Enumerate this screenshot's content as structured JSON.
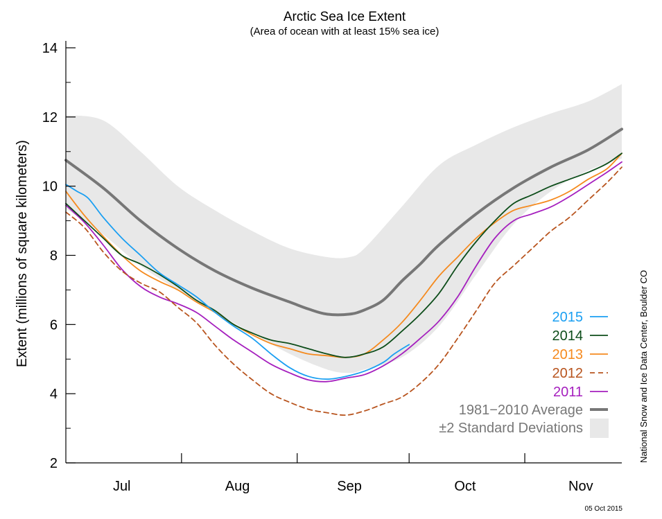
{
  "chart_data": {
    "type": "line",
    "title": "Arctic Sea Ice Extent",
    "subtitle": "(Area of ocean with at least 15% sea ice)",
    "ylabel": "Extent (millions of square kilometers)",
    "ylim": [
      2,
      14.2
    ],
    "yticks": [
      2,
      4,
      6,
      8,
      10,
      12,
      14
    ],
    "xlim": [
      0,
      149
    ],
    "months": [
      {
        "label": "Jul",
        "tick": 0,
        "label_at": 15
      },
      {
        "label": "Aug",
        "tick": 31,
        "label_at": 46
      },
      {
        "label": "Sep",
        "tick": 62,
        "label_at": 76
      },
      {
        "label": "Oct",
        "tick": 92,
        "label_at": 107
      },
      {
        "label": "Nov",
        "tick": 123,
        "label_at": 138
      },
      {
        "label": "",
        "tick": 153,
        "label_at": null
      }
    ],
    "legend_position": "bottom-right",
    "credit": "National Snow and Ice Data Center, Boulder CO",
    "date_stamp": "05 Oct 2015",
    "band": {
      "name": "±2 Standard Deviations",
      "color": "#e8e8e8",
      "x": [
        0,
        10,
        20,
        30,
        40,
        50,
        60,
        70,
        76,
        80,
        90,
        100,
        110,
        120,
        130,
        140,
        149
      ],
      "upper": [
        12.05,
        11.9,
        11.0,
        10.0,
        9.3,
        8.7,
        8.2,
        7.95,
        7.95,
        8.2,
        9.4,
        10.6,
        11.2,
        11.7,
        12.1,
        12.45,
        12.95
      ],
      "lower": [
        9.35,
        8.6,
        7.7,
        7.0,
        6.35,
        5.75,
        5.15,
        4.7,
        4.6,
        4.7,
        5.05,
        5.95,
        7.45,
        8.9,
        9.85,
        10.45,
        10.8
      ]
    },
    "series": [
      {
        "name": "1981−2010 Average",
        "color": "#777777",
        "dash": false,
        "width": 4,
        "x": [
          0,
          10,
          20,
          30,
          40,
          50,
          60,
          65,
          70,
          76,
          80,
          85,
          90,
          95,
          100,
          110,
          120,
          130,
          140,
          149
        ],
        "y": [
          10.75,
          9.95,
          9.0,
          8.2,
          7.55,
          7.05,
          6.65,
          6.45,
          6.3,
          6.3,
          6.42,
          6.7,
          7.25,
          7.75,
          8.3,
          9.2,
          9.95,
          10.55,
          11.05,
          11.65
        ]
      },
      {
        "name": "2015",
        "color": "#1a9ff2",
        "dash": false,
        "width": 1.8,
        "x": [
          0,
          3,
          6,
          10,
          15,
          20,
          25,
          30,
          35,
          40,
          45,
          50,
          55,
          60,
          65,
          70,
          75,
          80,
          85,
          88,
          92
        ],
        "y": [
          10.05,
          9.85,
          9.65,
          9.1,
          8.5,
          8.0,
          7.5,
          7.15,
          6.8,
          6.35,
          5.95,
          5.6,
          5.15,
          4.75,
          4.5,
          4.42,
          4.5,
          4.65,
          4.9,
          5.15,
          5.42
        ]
      },
      {
        "name": "2014",
        "color": "#0d4d1a",
        "dash": false,
        "width": 1.8,
        "x": [
          0,
          5,
          10,
          15,
          20,
          25,
          30,
          35,
          40,
          45,
          50,
          55,
          60,
          65,
          70,
          75,
          80,
          85,
          90,
          95,
          100,
          105,
          110,
          115,
          120,
          125,
          130,
          135,
          140,
          145,
          149
        ],
        "y": [
          9.5,
          9.0,
          8.5,
          8.0,
          7.75,
          7.45,
          7.1,
          6.7,
          6.4,
          6.0,
          5.75,
          5.55,
          5.45,
          5.3,
          5.15,
          5.05,
          5.15,
          5.35,
          5.8,
          6.3,
          6.9,
          7.7,
          8.4,
          9.0,
          9.5,
          9.75,
          10.0,
          10.2,
          10.4,
          10.65,
          10.95
        ]
      },
      {
        "name": "2013",
        "color": "#f58a1e",
        "dash": false,
        "width": 1.8,
        "x": [
          0,
          5,
          10,
          15,
          20,
          25,
          30,
          35,
          40,
          45,
          50,
          55,
          60,
          65,
          70,
          75,
          80,
          85,
          90,
          95,
          100,
          105,
          110,
          115,
          120,
          125,
          130,
          135,
          140,
          145,
          149
        ],
        "y": [
          9.85,
          9.15,
          8.55,
          8.0,
          7.55,
          7.25,
          7.0,
          6.65,
          6.35,
          6.0,
          5.7,
          5.45,
          5.3,
          5.15,
          5.1,
          5.05,
          5.15,
          5.55,
          6.05,
          6.7,
          7.4,
          7.95,
          8.5,
          8.95,
          9.3,
          9.45,
          9.6,
          9.85,
          10.2,
          10.5,
          10.95
        ]
      },
      {
        "name": "2012",
        "color": "#b8541e",
        "dash": true,
        "width": 1.8,
        "x": [
          0,
          5,
          10,
          15,
          20,
          25,
          30,
          35,
          40,
          45,
          50,
          55,
          60,
          65,
          70,
          75,
          80,
          85,
          90,
          95,
          100,
          105,
          110,
          115,
          120,
          125,
          130,
          135,
          140,
          145,
          149
        ],
        "y": [
          9.25,
          8.8,
          8.1,
          7.55,
          7.2,
          6.95,
          6.5,
          6.05,
          5.4,
          4.85,
          4.4,
          4.0,
          3.75,
          3.55,
          3.45,
          3.38,
          3.5,
          3.7,
          3.9,
          4.3,
          4.85,
          5.6,
          6.4,
          7.2,
          7.7,
          8.2,
          8.7,
          9.1,
          9.6,
          10.1,
          10.55
        ]
      },
      {
        "name": "2011",
        "color": "#a51fbe",
        "dash": false,
        "width": 1.8,
        "x": [
          0,
          5,
          10,
          15,
          20,
          25,
          30,
          35,
          40,
          45,
          50,
          55,
          60,
          65,
          70,
          75,
          80,
          85,
          90,
          95,
          100,
          105,
          110,
          115,
          120,
          125,
          130,
          135,
          140,
          145,
          149
        ],
        "y": [
          9.45,
          8.95,
          8.3,
          7.6,
          7.1,
          6.8,
          6.6,
          6.35,
          5.95,
          5.55,
          5.2,
          4.85,
          4.6,
          4.4,
          4.35,
          4.45,
          4.55,
          4.8,
          5.15,
          5.6,
          6.1,
          6.8,
          7.7,
          8.5,
          9.0,
          9.2,
          9.4,
          9.7,
          10.05,
          10.4,
          10.7
        ]
      }
    ]
  }
}
